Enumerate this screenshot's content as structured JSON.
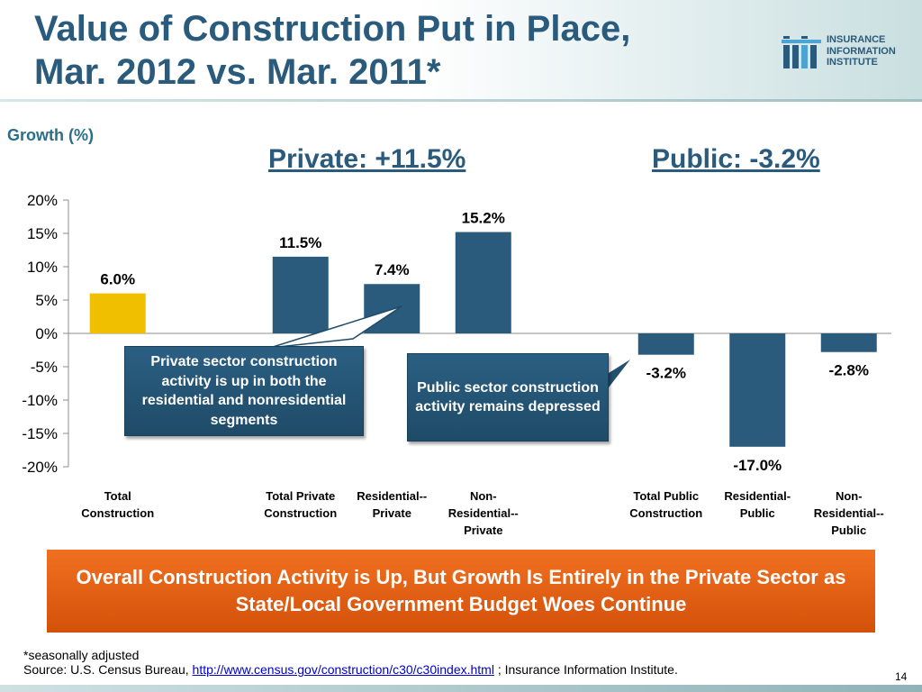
{
  "title": {
    "line1": "Value of Construction Put in Place,",
    "line2": "Mar. 2012 vs. Mar. 2011*"
  },
  "logo": {
    "line1": "INSURANCE",
    "line2": "INFORMATION",
    "line3": "INSTITUTE",
    "icon": "iii-logo-icon"
  },
  "headlines": {
    "private": "Private: +11.5%",
    "public": "Public: -3.2%"
  },
  "colors": {
    "bar_primary": "#2a5a7c",
    "bar_highlight": "#f0c000",
    "title": "#2a5a7c",
    "banner": "#e8590c",
    "callout": "#23506f"
  },
  "chart_data": {
    "type": "bar",
    "ylabel": "Growth (%)",
    "ylim": [
      -20,
      20
    ],
    "yticks": [
      "20%",
      "15%",
      "10%",
      "5%",
      "0%",
      "-5%",
      "-10%",
      "-15%",
      "-20%"
    ],
    "grid": false,
    "categories": [
      [
        "Total",
        "Construction"
      ],
      [],
      [
        "Total Private",
        "Construction"
      ],
      [
        "Residential--",
        "Private"
      ],
      [
        "Non-",
        "Residential--",
        "Private"
      ],
      [],
      [
        "Total Public",
        "Construction"
      ],
      [
        "Residential-",
        "Public"
      ],
      [
        "Non-",
        "Residential--",
        "Public"
      ]
    ],
    "values": [
      6.0,
      null,
      11.5,
      7.4,
      15.2,
      null,
      -3.2,
      -17.0,
      -2.8
    ],
    "data_labels": [
      "6.0%",
      "",
      "11.5%",
      "7.4%",
      "15.2%",
      "",
      "-3.2%",
      "-17.0%",
      "-2.8%"
    ],
    "highlight_index": 0
  },
  "callouts": {
    "private": "Private sector construction activity is up in both the residential and nonresidential segments",
    "public": "Public sector construction activity remains depressed"
  },
  "banner": "Overall Construction Activity is Up, But Growth Is Entirely in the Private Sector as State/Local Government Budget Woes Continue",
  "footnote": {
    "note": "*seasonally adjusted",
    "source_prefix": "Source: U.S. Census Bureau, ",
    "source_link": "http://www.census.gov/construction/c30/c30index.html",
    "source_suffix": " ; Insurance Information Institute."
  },
  "page_number": "14"
}
